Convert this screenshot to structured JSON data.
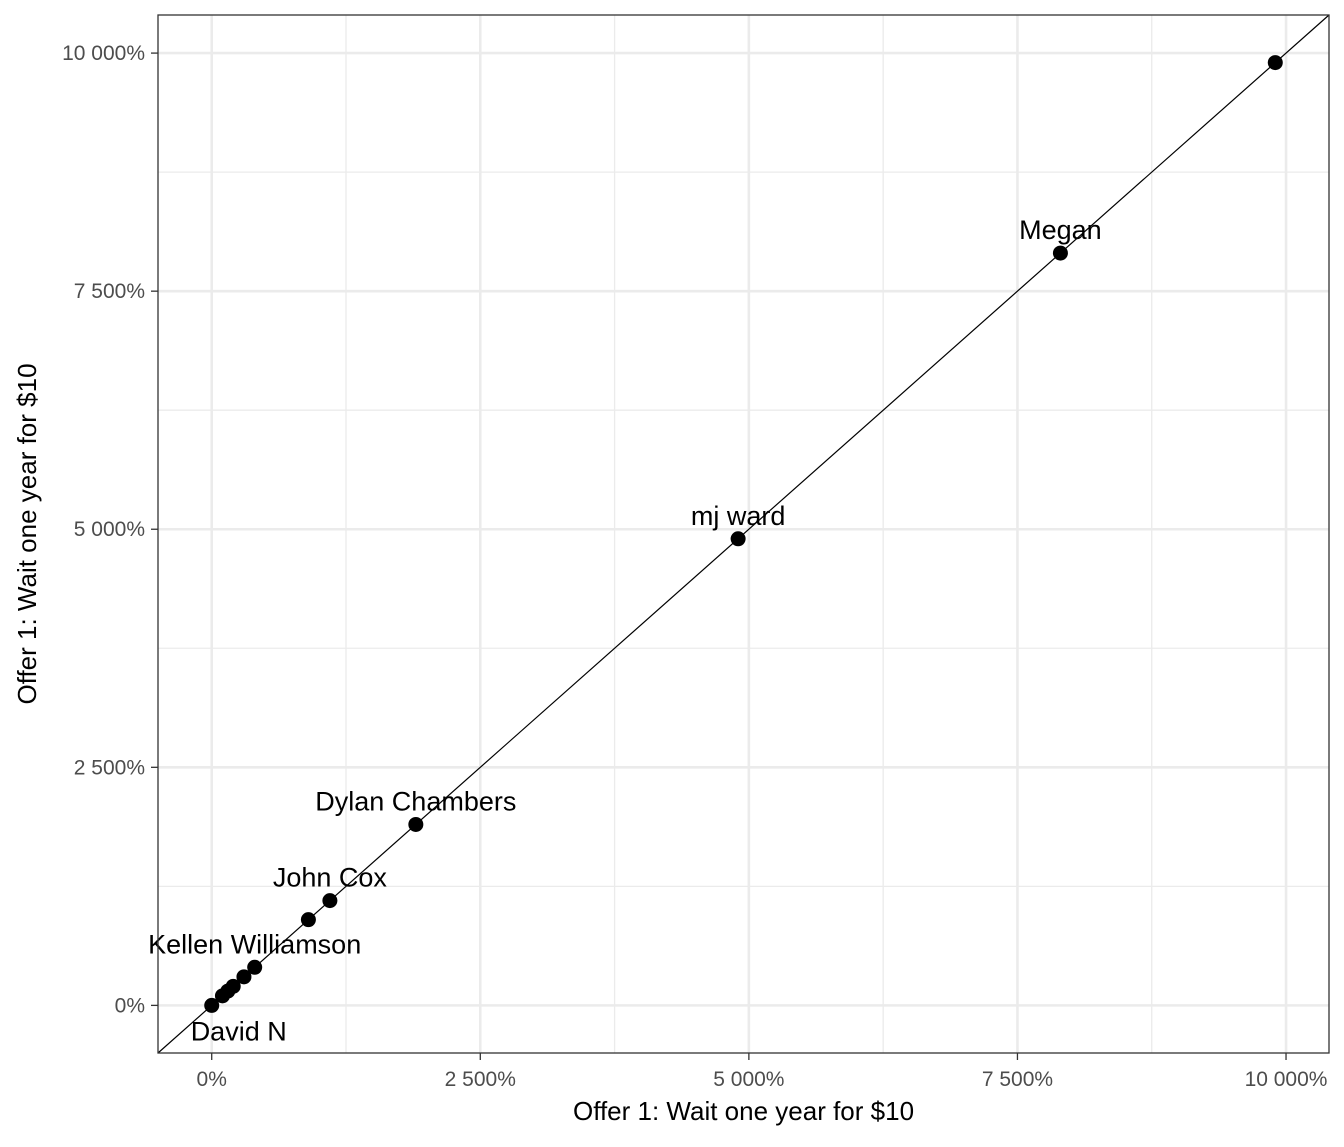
{
  "chart_data": {
    "type": "scatter",
    "xlabel": "Offer 1: Wait one year for $10",
    "ylabel": "Offer 1: Wait one year for $10",
    "xlim": [
      -500,
      10400
    ],
    "ylim": [
      -500,
      10400
    ],
    "x_ticks": [
      {
        "value": 0,
        "label": "0%"
      },
      {
        "value": 2500,
        "label": "2 500%"
      },
      {
        "value": 5000,
        "label": "5 000%"
      },
      {
        "value": 7500,
        "label": "7 500%"
      },
      {
        "value": 10000,
        "label": "10 000%"
      }
    ],
    "y_ticks": [
      {
        "value": 0,
        "label": "0%"
      },
      {
        "value": 2500,
        "label": "2 500%"
      },
      {
        "value": 5000,
        "label": "5 000%"
      },
      {
        "value": 7500,
        "label": "7 500%"
      },
      {
        "value": 10000,
        "label": "10 000%"
      }
    ],
    "reference_line": "y = x",
    "grid": true,
    "points": [
      {
        "x": 0,
        "y": 0
      },
      {
        "x": 100,
        "y": 100
      },
      {
        "x": 150,
        "y": 150
      },
      {
        "x": 200,
        "y": 200
      },
      {
        "x": 300,
        "y": 300
      },
      {
        "x": 400,
        "y": 400
      },
      {
        "x": 900,
        "y": 900
      },
      {
        "x": 1100,
        "y": 1100
      },
      {
        "x": 1900,
        "y": 1900
      },
      {
        "x": 4900,
        "y": 4900
      },
      {
        "x": 7900,
        "y": 7900
      },
      {
        "x": 9900,
        "y": 9900
      }
    ],
    "annotations": [
      {
        "text": "David N",
        "x": 0,
        "y": 0,
        "position": "below"
      },
      {
        "text": "Kellen Williamson",
        "x": 400,
        "y": 400,
        "position": "above"
      },
      {
        "text": "John Cox",
        "x": 1100,
        "y": 1100,
        "position": "above"
      },
      {
        "text": "Dylan Chambers",
        "x": 1900,
        "y": 1900,
        "position": "above"
      },
      {
        "text": "mj ward",
        "x": 4900,
        "y": 4900,
        "position": "above"
      },
      {
        "text": "Megan",
        "x": 7900,
        "y": 7900,
        "position": "above"
      }
    ]
  }
}
